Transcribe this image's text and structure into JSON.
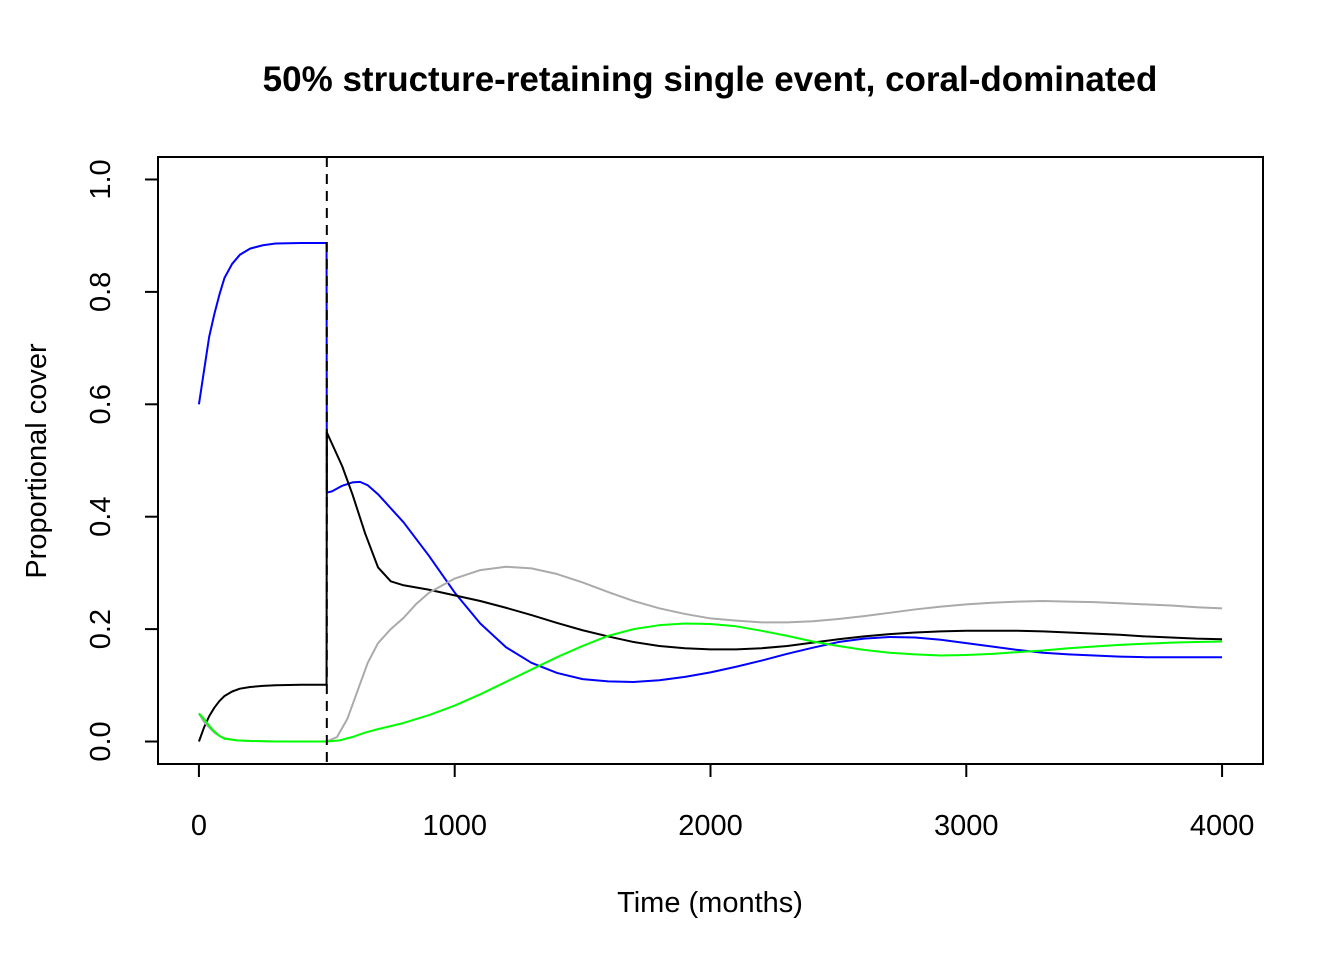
{
  "chart_data": {
    "type": "line",
    "title": "50% structure-retaining single event, coral-dominated",
    "xlabel": "Time (months)",
    "ylabel": "Proportional cover",
    "xlim": [
      -160,
      4160
    ],
    "ylim": [
      -0.04,
      1.04
    ],
    "x_ticks": [
      0,
      1000,
      2000,
      3000,
      4000
    ],
    "x_tick_labels": [
      "0",
      "1000",
      "2000",
      "3000",
      "4000"
    ],
    "y_ticks": [
      0.0,
      0.2,
      0.4,
      0.6,
      0.8,
      1.0
    ],
    "y_tick_labels": [
      "0.0",
      "0.2",
      "0.4",
      "0.6",
      "0.8",
      "1.0"
    ],
    "grid": false,
    "event_line": {
      "x": 500,
      "style": "dashed",
      "color": "#000000"
    },
    "series": [
      {
        "color": "#0000ff",
        "points": [
          [
            0,
            0.6
          ],
          [
            20,
            0.66
          ],
          [
            40,
            0.72
          ],
          [
            60,
            0.76
          ],
          [
            80,
            0.795
          ],
          [
            100,
            0.825
          ],
          [
            130,
            0.85
          ],
          [
            160,
            0.866
          ],
          [
            200,
            0.877
          ],
          [
            250,
            0.883
          ],
          [
            300,
            0.886
          ],
          [
            400,
            0.887
          ],
          [
            499,
            0.887
          ],
          [
            500,
            0.443
          ],
          [
            520,
            0.445
          ],
          [
            560,
            0.455
          ],
          [
            600,
            0.461
          ],
          [
            630,
            0.462
          ],
          [
            660,
            0.456
          ],
          [
            700,
            0.44
          ],
          [
            800,
            0.39
          ],
          [
            900,
            0.33
          ],
          [
            1000,
            0.265
          ],
          [
            1100,
            0.21
          ],
          [
            1200,
            0.168
          ],
          [
            1300,
            0.14
          ],
          [
            1400,
            0.122
          ],
          [
            1500,
            0.111
          ],
          [
            1600,
            0.107
          ],
          [
            1700,
            0.106
          ],
          [
            1800,
            0.109
          ],
          [
            1900,
            0.115
          ],
          [
            2000,
            0.123
          ],
          [
            2100,
            0.133
          ],
          [
            2200,
            0.144
          ],
          [
            2300,
            0.156
          ],
          [
            2400,
            0.167
          ],
          [
            2500,
            0.177
          ],
          [
            2600,
            0.183
          ],
          [
            2700,
            0.186
          ],
          [
            2800,
            0.185
          ],
          [
            2900,
            0.181
          ],
          [
            3000,
            0.175
          ],
          [
            3100,
            0.169
          ],
          [
            3200,
            0.163
          ],
          [
            3300,
            0.158
          ],
          [
            3400,
            0.155
          ],
          [
            3500,
            0.153
          ],
          [
            3600,
            0.151
          ],
          [
            3700,
            0.15
          ],
          [
            3800,
            0.15
          ],
          [
            3900,
            0.15
          ],
          [
            4000,
            0.15
          ]
        ]
      },
      {
        "color": "#000000",
        "points": [
          [
            0,
            0.0
          ],
          [
            20,
            0.025
          ],
          [
            40,
            0.045
          ],
          [
            60,
            0.06
          ],
          [
            80,
            0.072
          ],
          [
            100,
            0.081
          ],
          [
            130,
            0.089
          ],
          [
            160,
            0.094
          ],
          [
            200,
            0.097
          ],
          [
            250,
            0.099
          ],
          [
            300,
            0.1
          ],
          [
            400,
            0.101
          ],
          [
            499,
            0.101
          ],
          [
            500,
            0.55
          ],
          [
            520,
            0.53
          ],
          [
            560,
            0.49
          ],
          [
            600,
            0.44
          ],
          [
            650,
            0.37
          ],
          [
            700,
            0.31
          ],
          [
            750,
            0.285
          ],
          [
            800,
            0.278
          ],
          [
            900,
            0.27
          ],
          [
            1000,
            0.26
          ],
          [
            1100,
            0.25
          ],
          [
            1200,
            0.238
          ],
          [
            1300,
            0.225
          ],
          [
            1400,
            0.211
          ],
          [
            1500,
            0.198
          ],
          [
            1600,
            0.187
          ],
          [
            1700,
            0.177
          ],
          [
            1800,
            0.17
          ],
          [
            1900,
            0.166
          ],
          [
            2000,
            0.164
          ],
          [
            2100,
            0.164
          ],
          [
            2200,
            0.166
          ],
          [
            2300,
            0.17
          ],
          [
            2400,
            0.176
          ],
          [
            2500,
            0.182
          ],
          [
            2600,
            0.187
          ],
          [
            2700,
            0.191
          ],
          [
            2800,
            0.194
          ],
          [
            2900,
            0.196
          ],
          [
            3000,
            0.197
          ],
          [
            3100,
            0.197
          ],
          [
            3200,
            0.197
          ],
          [
            3300,
            0.196
          ],
          [
            3400,
            0.194
          ],
          [
            3500,
            0.192
          ],
          [
            3600,
            0.19
          ],
          [
            3700,
            0.187
          ],
          [
            3800,
            0.185
          ],
          [
            3900,
            0.183
          ],
          [
            4000,
            0.182
          ]
        ]
      },
      {
        "color": "#aaaaaa",
        "points": [
          [
            0,
            0.05
          ],
          [
            20,
            0.035
          ],
          [
            40,
            0.025
          ],
          [
            60,
            0.016
          ],
          [
            80,
            0.01
          ],
          [
            100,
            0.006
          ],
          [
            150,
            0.002
          ],
          [
            200,
            0.001
          ],
          [
            300,
            0.0
          ],
          [
            400,
            0.0
          ],
          [
            499,
            0.0
          ],
          [
            500,
            0.0
          ],
          [
            540,
            0.008
          ],
          [
            580,
            0.04
          ],
          [
            620,
            0.09
          ],
          [
            660,
            0.14
          ],
          [
            700,
            0.175
          ],
          [
            750,
            0.2
          ],
          [
            800,
            0.22
          ],
          [
            850,
            0.245
          ],
          [
            900,
            0.265
          ],
          [
            1000,
            0.29
          ],
          [
            1100,
            0.305
          ],
          [
            1200,
            0.311
          ],
          [
            1300,
            0.308
          ],
          [
            1400,
            0.298
          ],
          [
            1500,
            0.283
          ],
          [
            1600,
            0.266
          ],
          [
            1700,
            0.25
          ],
          [
            1800,
            0.237
          ],
          [
            1900,
            0.227
          ],
          [
            2000,
            0.219
          ],
          [
            2100,
            0.215
          ],
          [
            2200,
            0.212
          ],
          [
            2300,
            0.212
          ],
          [
            2400,
            0.214
          ],
          [
            2500,
            0.218
          ],
          [
            2600,
            0.223
          ],
          [
            2700,
            0.229
          ],
          [
            2800,
            0.235
          ],
          [
            2900,
            0.24
          ],
          [
            3000,
            0.244
          ],
          [
            3100,
            0.247
          ],
          [
            3200,
            0.249
          ],
          [
            3300,
            0.25
          ],
          [
            3400,
            0.249
          ],
          [
            3500,
            0.248
          ],
          [
            3600,
            0.246
          ],
          [
            3700,
            0.244
          ],
          [
            3800,
            0.242
          ],
          [
            3900,
            0.239
          ],
          [
            4000,
            0.237
          ]
        ]
      },
      {
        "color": "#00ff00",
        "points": [
          [
            0,
            0.05
          ],
          [
            20,
            0.04
          ],
          [
            40,
            0.028
          ],
          [
            60,
            0.018
          ],
          [
            80,
            0.01
          ],
          [
            100,
            0.005
          ],
          [
            150,
            0.002
          ],
          [
            200,
            0.001
          ],
          [
            300,
            0.0
          ],
          [
            400,
            0.0
          ],
          [
            499,
            0.0
          ],
          [
            500,
            0.0
          ],
          [
            550,
            0.002
          ],
          [
            600,
            0.008
          ],
          [
            650,
            0.016
          ],
          [
            700,
            0.022
          ],
          [
            800,
            0.033
          ],
          [
            900,
            0.047
          ],
          [
            1000,
            0.064
          ],
          [
            1100,
            0.084
          ],
          [
            1200,
            0.106
          ],
          [
            1300,
            0.128
          ],
          [
            1400,
            0.15
          ],
          [
            1500,
            0.17
          ],
          [
            1600,
            0.188
          ],
          [
            1700,
            0.2
          ],
          [
            1800,
            0.207
          ],
          [
            1900,
            0.21
          ],
          [
            2000,
            0.209
          ],
          [
            2100,
            0.205
          ],
          [
            2200,
            0.197
          ],
          [
            2300,
            0.188
          ],
          [
            2400,
            0.178
          ],
          [
            2500,
            0.17
          ],
          [
            2600,
            0.163
          ],
          [
            2700,
            0.158
          ],
          [
            2800,
            0.155
          ],
          [
            2900,
            0.153
          ],
          [
            3000,
            0.154
          ],
          [
            3100,
            0.156
          ],
          [
            3200,
            0.159
          ],
          [
            3300,
            0.162
          ],
          [
            3400,
            0.166
          ],
          [
            3500,
            0.169
          ],
          [
            3600,
            0.172
          ],
          [
            3700,
            0.174
          ],
          [
            3800,
            0.176
          ],
          [
            3900,
            0.177
          ],
          [
            4000,
            0.178
          ]
        ]
      }
    ]
  }
}
